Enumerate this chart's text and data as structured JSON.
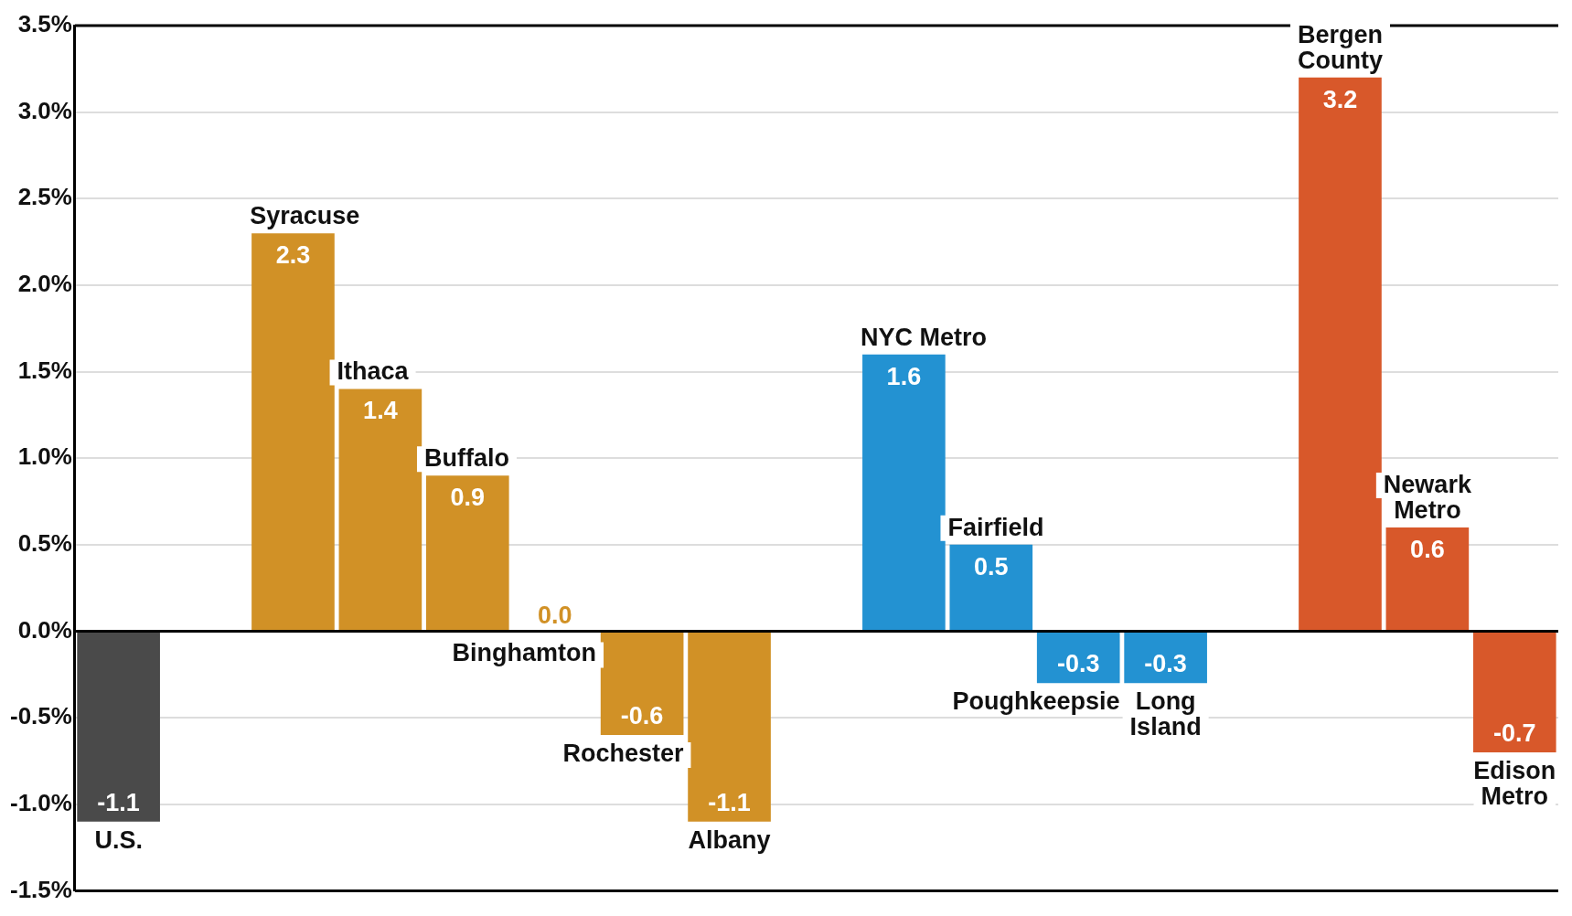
{
  "chart_data": {
    "type": "bar",
    "categories": [
      "U.S.",
      null,
      "Syracuse",
      "Ithaca",
      "Buffalo",
      "Binghamton",
      "Rochester",
      "Albany",
      null,
      "NYC Metro",
      "Fairfield",
      "Poughkeepsie",
      "Long Island",
      null,
      "Bergen County",
      "Newark Metro",
      "Edison Metro"
    ],
    "values": [
      -1.1,
      null,
      2.3,
      1.4,
      0.9,
      0,
      -0.6,
      -1.1,
      null,
      1.6,
      0.5,
      -0.3,
      -0.3,
      null,
      3.2,
      0.6,
      -0.7
    ],
    "value_labels": [
      "-1.1",
      null,
      "2.3",
      "1.4",
      "0.9",
      "0.0",
      "-0.6",
      "-1.1",
      null,
      "1.6",
      "0.5",
      "-0.3",
      "-0.3",
      null,
      "3.2",
      "0.6",
      "-0.7"
    ],
    "colors": [
      "#4a4a4a",
      "#d19126",
      "#d19126",
      "#d19126",
      "#d19126",
      "#d19126",
      "#d19126",
      "#d19126",
      "#d19126",
      "#2392d2",
      "#2392d2",
      "#2392d2",
      "#2392d2",
      "#d8582a",
      "#d8582a",
      "#d8582a",
      "#d8582a"
    ],
    "ylim": [
      -1.5,
      3.5
    ],
    "yticks": [
      {
        "value": -1.5,
        "label": "-1.5%"
      },
      {
        "value": -1,
        "label": "-1.0%"
      },
      {
        "value": -0.5,
        "label": "-0.5%"
      },
      {
        "value": 0,
        "label": "0.0%"
      },
      {
        "value": 0.5,
        "label": "0.5%"
      },
      {
        "value": 1,
        "label": "1.0%"
      },
      {
        "value": 1.5,
        "label": "1.5%"
      },
      {
        "value": 2,
        "label": "2.0%"
      },
      {
        "value": 2.5,
        "label": "2.5%"
      },
      {
        "value": 3,
        "label": "3.0%"
      },
      {
        "value": 3.5,
        "label": "3.5%"
      }
    ],
    "grid": "y",
    "legend": false
  }
}
